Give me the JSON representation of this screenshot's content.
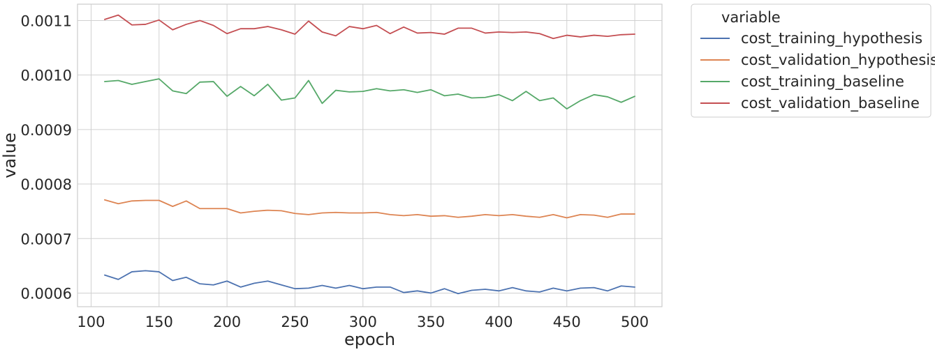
{
  "chart_data": {
    "type": "line",
    "xlabel": "epoch",
    "ylabel": "value",
    "xlim": [
      90,
      520
    ],
    "ylim": [
      0.000575,
      0.00113
    ],
    "xticks": [
      100,
      150,
      200,
      250,
      300,
      350,
      400,
      450,
      500
    ],
    "yticks": [
      0.0006,
      0.0007,
      0.0008,
      0.0009,
      0.001,
      0.0011
    ],
    "ytick_labels": [
      "0.0006",
      "0.0007",
      "0.0008",
      "0.0009",
      "0.0010",
      "0.0011"
    ],
    "grid": true,
    "legend_title": "variable",
    "legend_placement": "outside-top-right",
    "x": [
      110,
      120,
      130,
      140,
      150,
      160,
      170,
      180,
      190,
      200,
      210,
      220,
      230,
      240,
      250,
      260,
      270,
      280,
      290,
      300,
      310,
      320,
      330,
      340,
      350,
      360,
      370,
      380,
      390,
      400,
      410,
      420,
      430,
      440,
      450,
      460,
      470,
      480,
      490,
      500
    ],
    "series": [
      {
        "name": "cost_training_hypothesis",
        "color": "#4c72b0",
        "values": [
          0.000633,
          0.000625,
          0.000639,
          0.000641,
          0.000639,
          0.000623,
          0.000629,
          0.000617,
          0.000615,
          0.000622,
          0.000611,
          0.000618,
          0.000622,
          0.000615,
          0.000608,
          0.000609,
          0.000614,
          0.000609,
          0.000614,
          0.000608,
          0.000611,
          0.000611,
          0.000601,
          0.000604,
          0.0006,
          0.000608,
          0.000599,
          0.000605,
          0.000607,
          0.000604,
          0.00061,
          0.000604,
          0.000602,
          0.000609,
          0.000604,
          0.000609,
          0.00061,
          0.000604,
          0.000613,
          0.000611
        ]
      },
      {
        "name": "cost_validation_hypothesis",
        "color": "#dd8452",
        "values": [
          0.000771,
          0.000764,
          0.000769,
          0.00077,
          0.00077,
          0.000759,
          0.000769,
          0.000755,
          0.000755,
          0.000755,
          0.000747,
          0.00075,
          0.000752,
          0.000751,
          0.000746,
          0.000744,
          0.000747,
          0.000748,
          0.000747,
          0.000747,
          0.000748,
          0.000744,
          0.000742,
          0.000744,
          0.000741,
          0.000742,
          0.000739,
          0.000741,
          0.000744,
          0.000742,
          0.000744,
          0.000741,
          0.000739,
          0.000744,
          0.000738,
          0.000744,
          0.000743,
          0.000739,
          0.000745,
          0.000745
        ]
      },
      {
        "name": "cost_training_baseline",
        "color": "#55a868",
        "values": [
          0.000988,
          0.00099,
          0.000983,
          0.000988,
          0.000993,
          0.000971,
          0.000966,
          0.000987,
          0.000988,
          0.000961,
          0.000979,
          0.000962,
          0.000983,
          0.000954,
          0.000958,
          0.00099,
          0.000948,
          0.000972,
          0.000969,
          0.00097,
          0.000975,
          0.000971,
          0.000973,
          0.000968,
          0.000973,
          0.000962,
          0.000965,
          0.000958,
          0.000959,
          0.000964,
          0.000953,
          0.00097,
          0.000953,
          0.000958,
          0.000938,
          0.000953,
          0.000964,
          0.00096,
          0.00095,
          0.000961
        ]
      },
      {
        "name": "cost_validation_baseline",
        "color": "#c44e52",
        "values": [
          0.001102,
          0.00111,
          0.001092,
          0.001093,
          0.001101,
          0.001083,
          0.001093,
          0.0011,
          0.001091,
          0.001076,
          0.001085,
          0.001085,
          0.001089,
          0.001083,
          0.001075,
          0.001099,
          0.001079,
          0.001072,
          0.001089,
          0.001085,
          0.001091,
          0.001076,
          0.001088,
          0.001077,
          0.001078,
          0.001075,
          0.001086,
          0.001086,
          0.001077,
          0.001079,
          0.001078,
          0.001079,
          0.001076,
          0.001067,
          0.001073,
          0.00107,
          0.001073,
          0.001071,
          0.001074,
          0.001075
        ]
      }
    ]
  }
}
